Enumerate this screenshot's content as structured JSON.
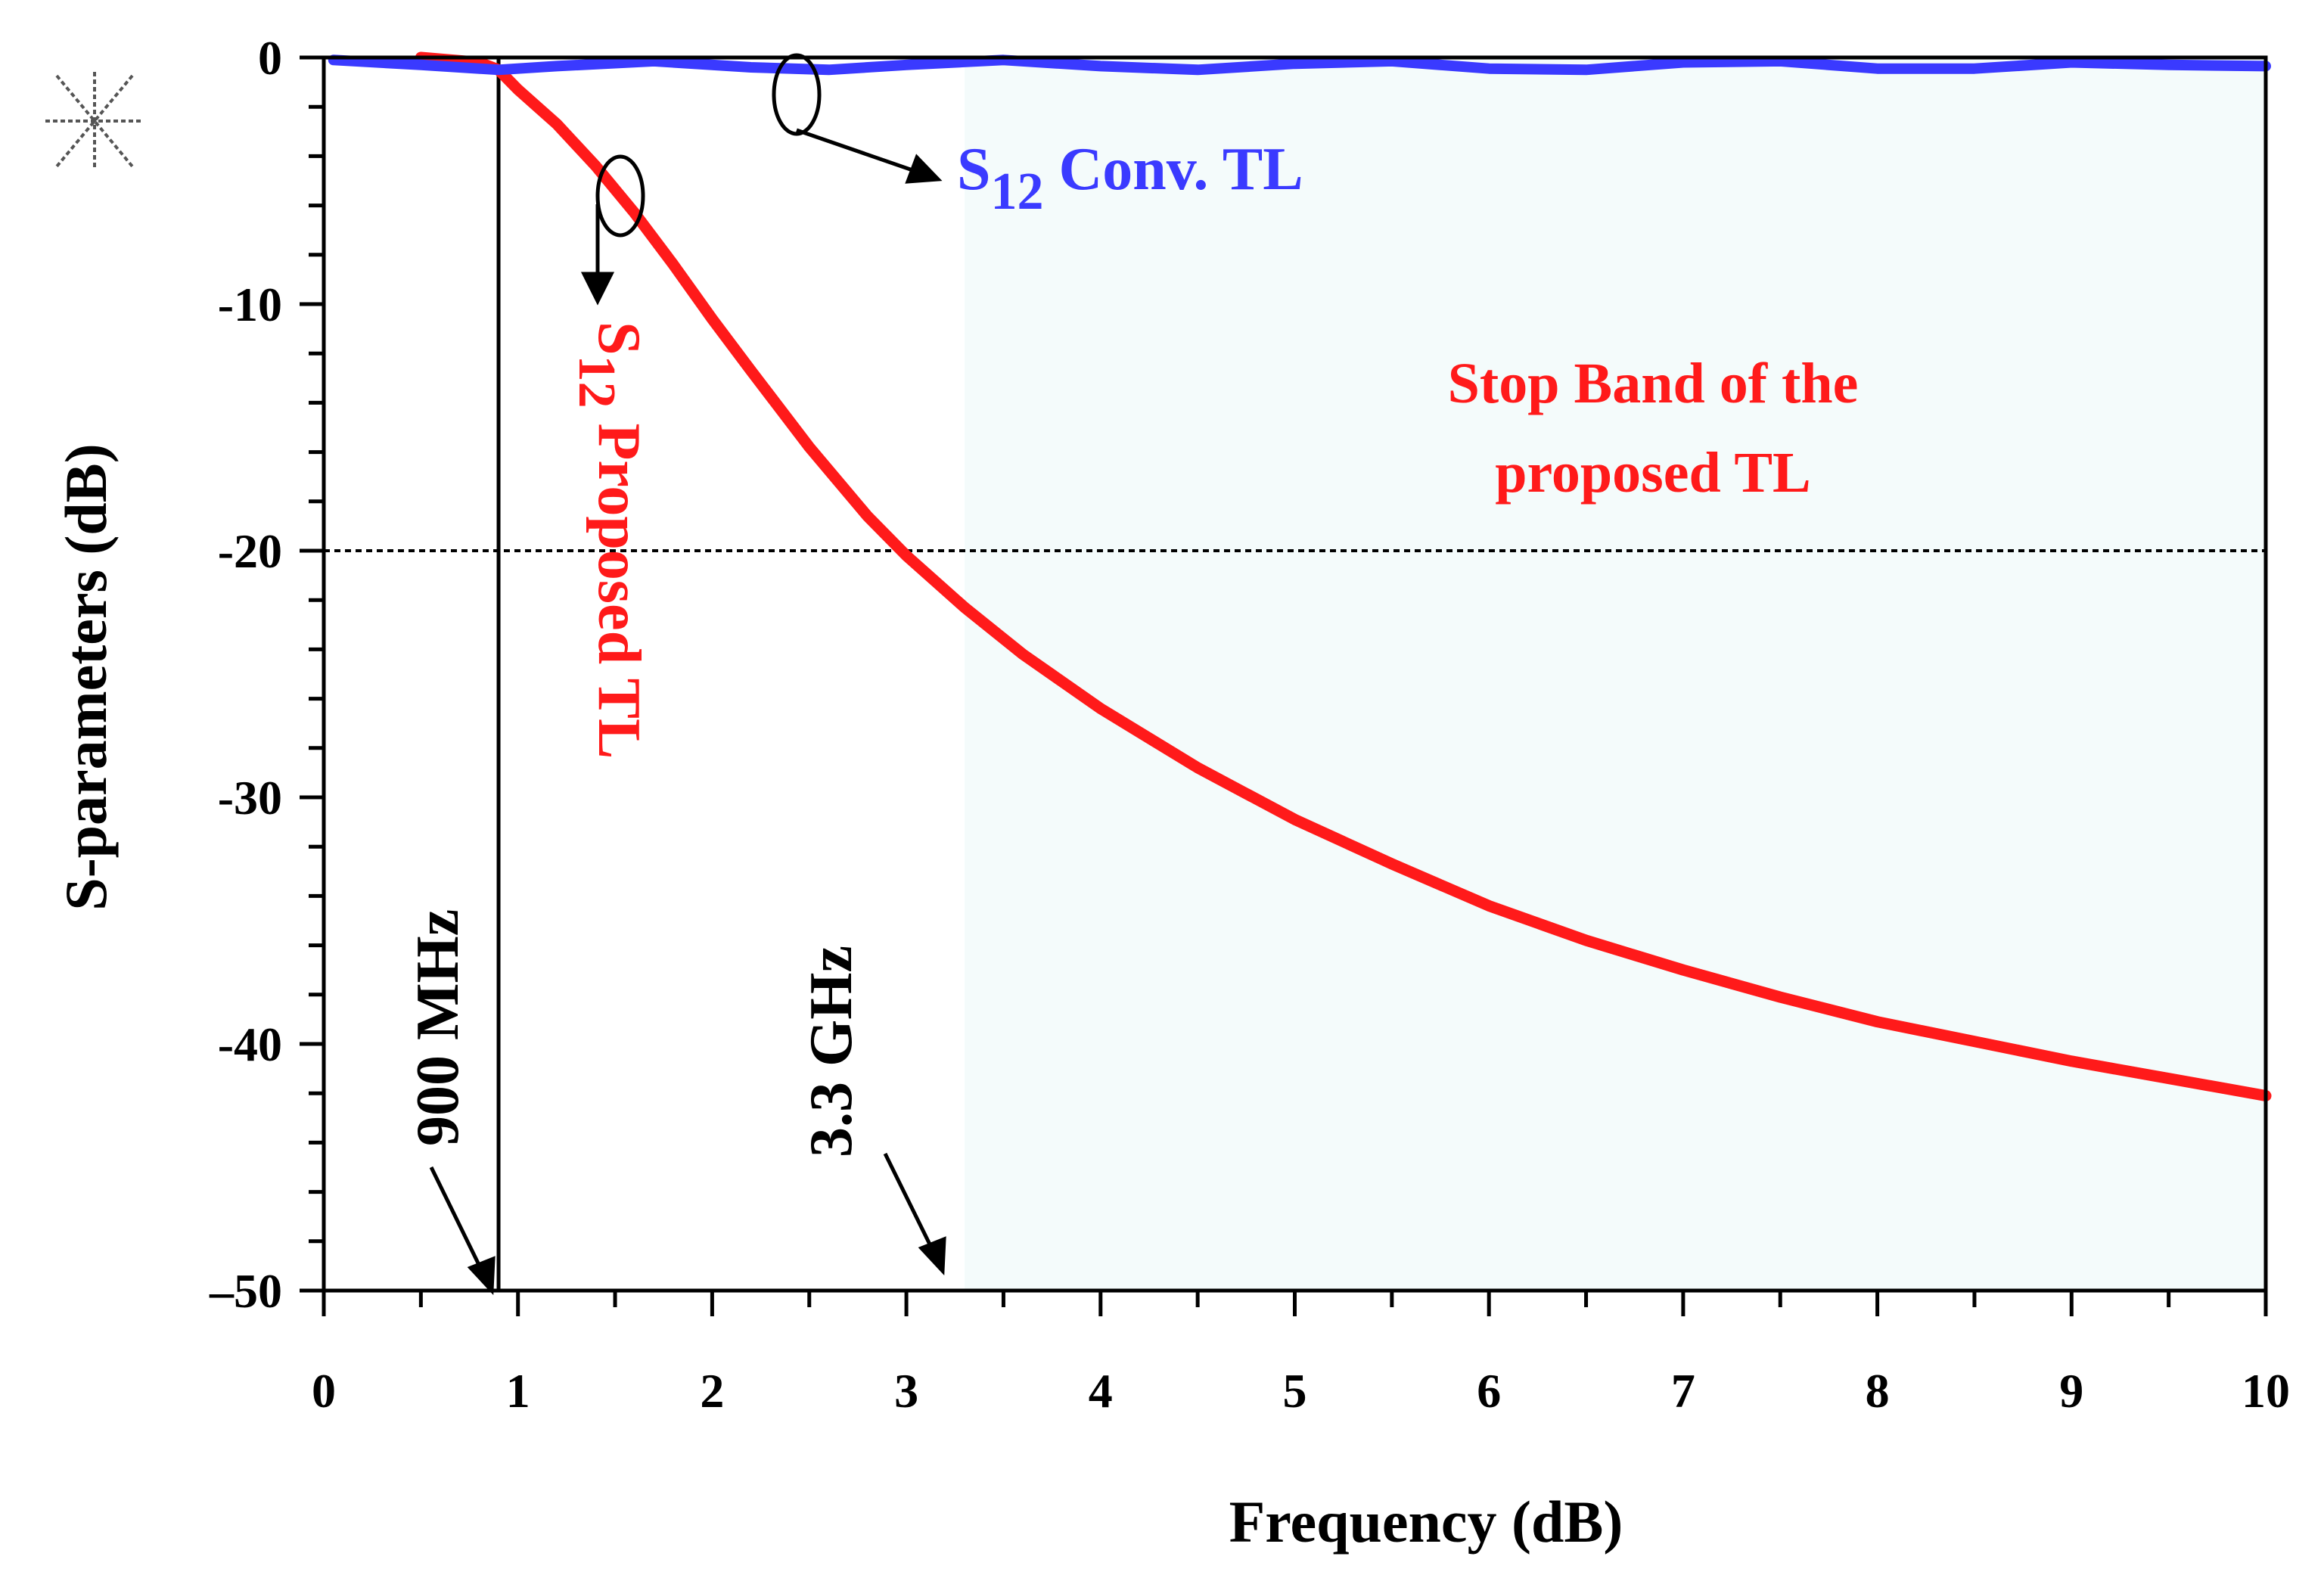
{
  "chart_data": {
    "type": "line",
    "title": "",
    "xlabel": "Frequency (dB)",
    "ylabel": "S-parameters (dB)",
    "xlim": [
      0,
      10
    ],
    "ylim": [
      -50,
      0
    ],
    "x_ticks": [
      "0",
      "1",
      "2",
      "3",
      "4",
      "5",
      "6",
      "7",
      "8",
      "9",
      "10"
    ],
    "y_ticks": [
      "0",
      "-10",
      "-20",
      "-30",
      "-40",
      "–50"
    ],
    "x_tick_values": [
      0,
      1,
      2,
      3,
      4,
      5,
      6,
      7,
      8,
      9,
      10
    ],
    "y_tick_values": [
      0,
      -10,
      -20,
      -30,
      -40,
      -50
    ],
    "grid": false,
    "series": [
      {
        "name": "S12 Proposed TL",
        "color": "#ff1a1a",
        "x": [
          0.5,
          0.8,
          0.9,
          1.0,
          1.2,
          1.4,
          1.6,
          1.8,
          2.0,
          2.2,
          2.5,
          2.8,
          3.0,
          3.3,
          3.6,
          4.0,
          4.5,
          5.0,
          5.5,
          6.0,
          6.5,
          7.0,
          7.5,
          8.0,
          8.5,
          9.0,
          9.5,
          10.0
        ],
        "values": [
          0,
          -0.2,
          -0.5,
          -1.3,
          -2.7,
          -4.4,
          -6.3,
          -8.4,
          -10.6,
          -12.7,
          -15.8,
          -18.6,
          -20.2,
          -22.3,
          -24.2,
          -26.4,
          -28.8,
          -30.9,
          -32.7,
          -34.4,
          -35.8,
          -37.0,
          -38.1,
          -39.1,
          -39.9,
          -40.7,
          -41.4,
          -42.1
        ]
      },
      {
        "name": "S12 Conv. TL",
        "color": "#3a3aff",
        "x": [
          0.05,
          0.5,
          0.9,
          1.2,
          1.7,
          2.2,
          2.6,
          3.0,
          3.5,
          4.0,
          4.5,
          5.0,
          5.5,
          6.0,
          6.5,
          7.0,
          7.5,
          8.0,
          8.5,
          9.0,
          9.5,
          10.0
        ],
        "values": [
          -0.1,
          -0.3,
          -0.5,
          -0.35,
          -0.15,
          -0.4,
          -0.5,
          -0.3,
          -0.1,
          -0.35,
          -0.5,
          -0.25,
          -0.15,
          -0.45,
          -0.5,
          -0.2,
          -0.15,
          -0.45,
          -0.45,
          -0.2,
          -0.3,
          -0.35
        ]
      }
    ],
    "reference_lines": [
      {
        "orientation": "vertical",
        "x": 0.9,
        "style": "solid",
        "label": "900 MHz"
      },
      {
        "orientation": "horizontal",
        "y": -20,
        "style": "dotted"
      }
    ],
    "shaded_region": {
      "x_start": 3.3,
      "x_end": 10,
      "label_line1": "Stop Band of the",
      "label_line2": "proposed TL",
      "label_color": "#ff1a1a",
      "fill": "#f4fbfb"
    },
    "annotations": {
      "freq_900": "900 MHz",
      "freq_33": "3.3 GHz",
      "legend_red_main": "S",
      "legend_red_sub": "12",
      "legend_red_text": " Proposed TL",
      "legend_blue_main": "S",
      "legend_blue_sub": "12",
      "legend_blue_text": " Conv. TL"
    }
  }
}
